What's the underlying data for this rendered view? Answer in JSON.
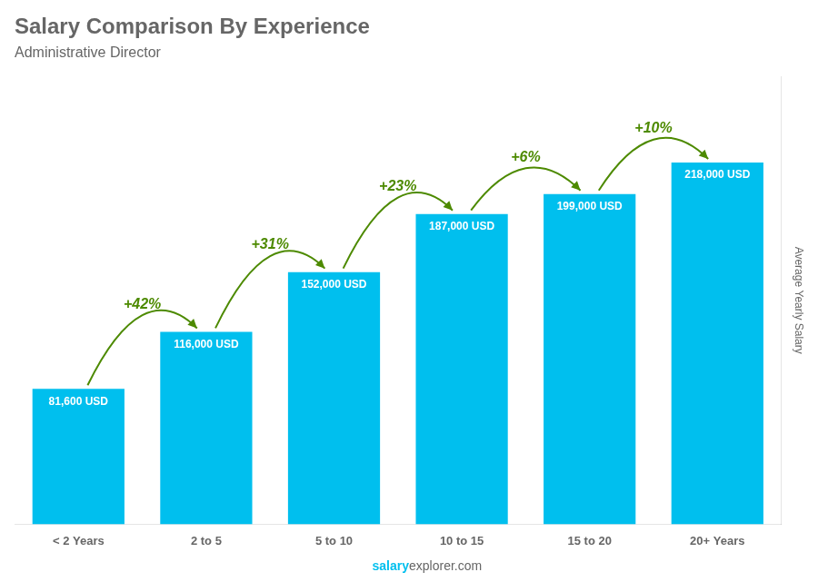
{
  "chart_data": {
    "type": "bar",
    "title": "Salary Comparison By Experience",
    "subtitle": "Administrative Director",
    "y_label": "Average Yearly Salary",
    "footer": [
      "salary",
      "explorer.com"
    ],
    "categories": [
      "< 2 Years",
      "2 to 5",
      "5 to 10",
      "10 to 15",
      "15 to 20",
      "20+ Years"
    ],
    "values": [
      81600,
      116000,
      152000,
      187000,
      199000,
      218000
    ],
    "value_labels": [
      "81,600 USD",
      "116,000 USD",
      "152,000 USD",
      "187,000 USD",
      "199,000 USD",
      "218,000 USD"
    ],
    "annotations": [
      "+42%",
      "+31%",
      "+23%",
      "+6%",
      "+10%"
    ],
    "color": "#00BFEE",
    "ylim": [
      0,
      270000
    ],
    "grid": false,
    "data_labels": true,
    "tick_labels": "x"
  }
}
